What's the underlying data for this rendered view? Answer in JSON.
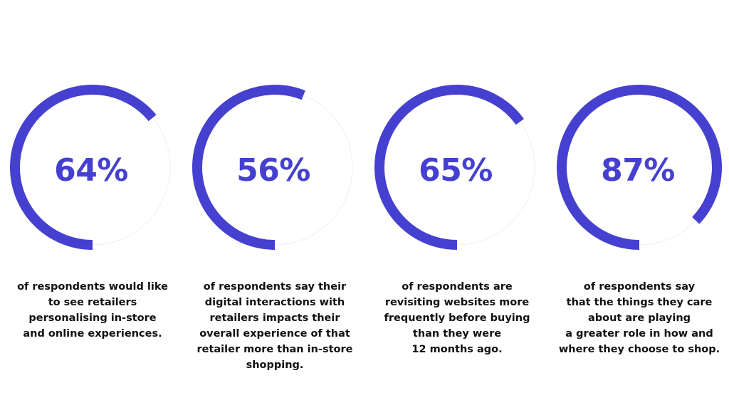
{
  "chart_data": {
    "type": "donut",
    "accent_color": "#4540d0",
    "track_color": "#efefef",
    "stats": [
      {
        "value": 64,
        "label": "64%",
        "caption": [
          "of respondents would like",
          "to see retailers",
          "personalising in-store",
          "and online experiences."
        ]
      },
      {
        "value": 56,
        "label": "56%",
        "caption": [
          "of respondents say their",
          "digital interactions with",
          "retailers impacts their",
          "overall experience of that",
          "retailer more than in-store",
          "shopping."
        ]
      },
      {
        "value": 65,
        "label": "65%",
        "caption": [
          "of respondents are",
          "revisiting websites more",
          "frequently before buying",
          "than they were",
          "12 months ago."
        ]
      },
      {
        "value": 87,
        "label": "87%",
        "caption": [
          "of respondents say",
          "that the things they care",
          "about are playing",
          "a greater role in how and",
          "where they choose to shop."
        ]
      }
    ]
  }
}
